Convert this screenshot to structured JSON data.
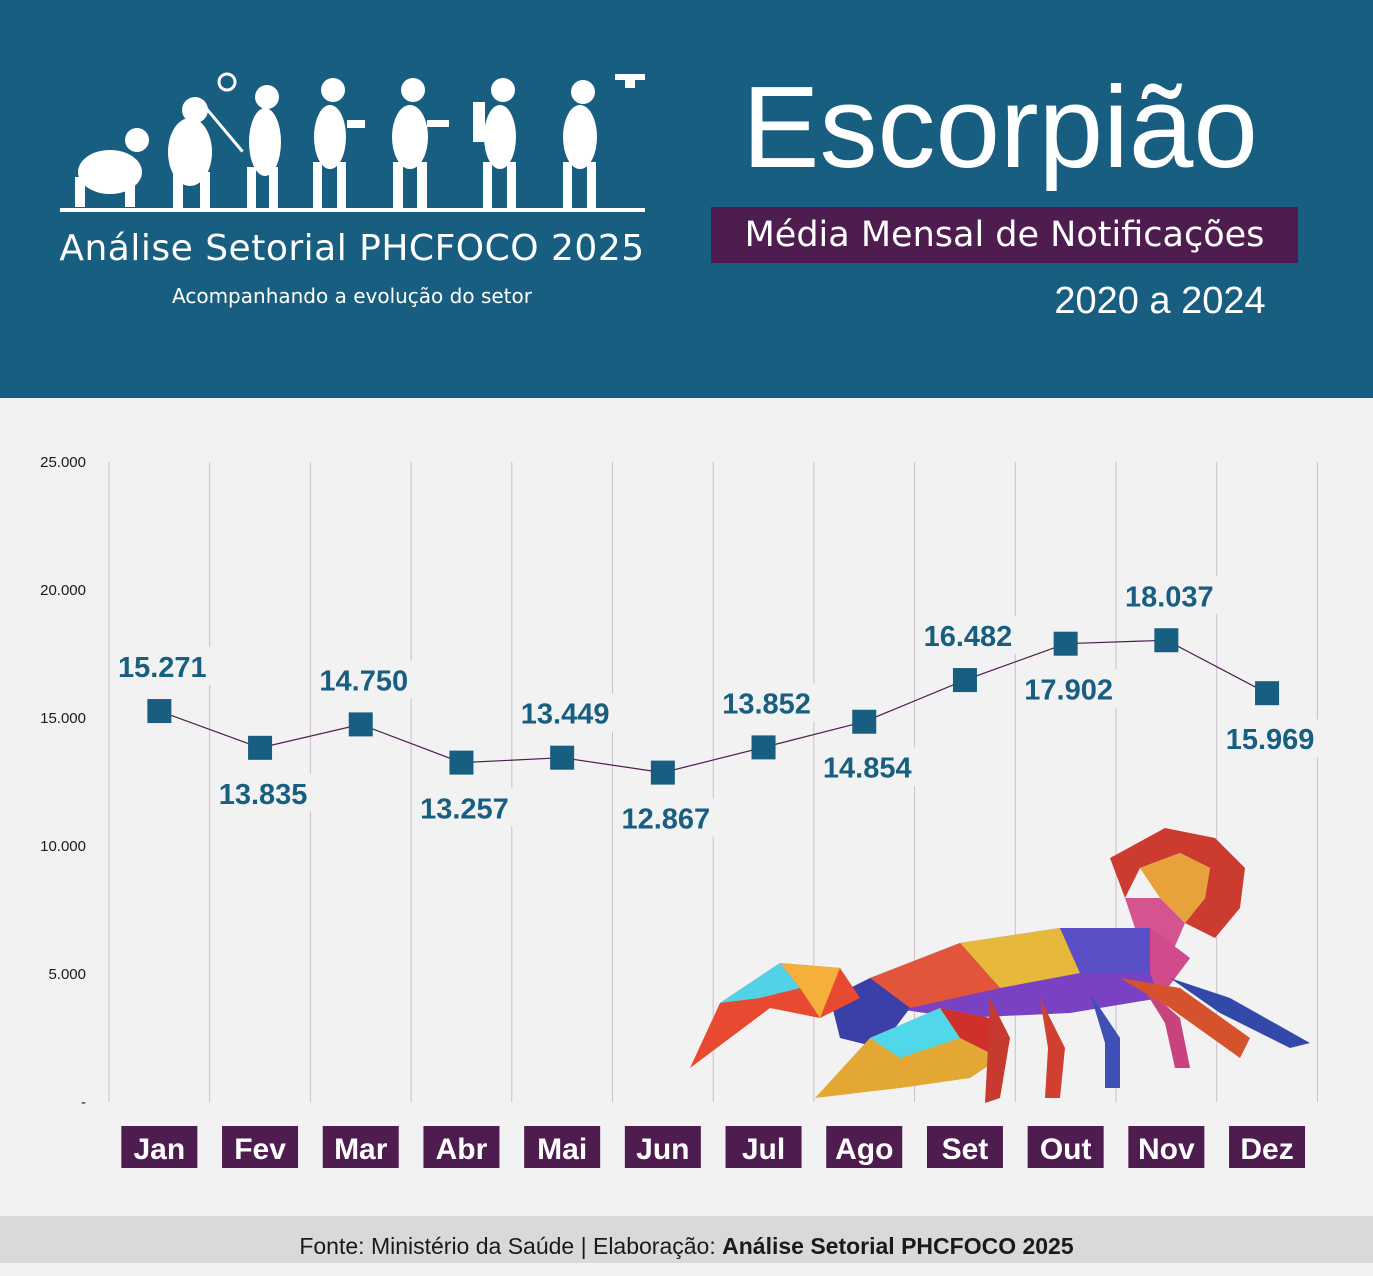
{
  "brand": {
    "title": "Análise Setorial PHCFOCO 2025",
    "subtitle": "Acompanhando a evolução do setor"
  },
  "header": {
    "title": "Escorpião",
    "subtitle": "Média Mensal de Notificações",
    "period": "2020 a 2024"
  },
  "footer": {
    "source": "Fonte: Ministério da Saúde | Elaboração: ",
    "author": "Análise Setorial PHCFOCO 2025"
  },
  "colors": {
    "header_bg": "#175e80",
    "accent_purple": "#4f1c4f",
    "marker": "#175e80",
    "line": "#4f1c4f"
  },
  "chart_data": {
    "type": "line",
    "categories": [
      "Jan",
      "Fev",
      "Mar",
      "Abr",
      "Mai",
      "Jun",
      "Jul",
      "Ago",
      "Set",
      "Out",
      "Nov",
      "Dez"
    ],
    "values": [
      15271,
      13835,
      14750,
      13257,
      13449,
      12867,
      13852,
      14854,
      16482,
      17902,
      18037,
      15969
    ],
    "data_labels": [
      "15.271",
      "13.835",
      "14.750",
      "13.257",
      "13.449",
      "12.867",
      "13.852",
      "14.854",
      "16.482",
      "17.902",
      "18.037",
      "15.969"
    ],
    "label_position": [
      "above",
      "below",
      "above",
      "below",
      "above",
      "below",
      "above",
      "below",
      "above",
      "below",
      "above",
      "below"
    ],
    "y_tick_values": [
      0,
      5000,
      10000,
      15000,
      20000,
      25000
    ],
    "y_tick_labels": [
      "-",
      "5.000",
      "10.000",
      "15.000",
      "20.000",
      "25.000"
    ],
    "ylim": [
      0,
      25000
    ],
    "grid": "vertical",
    "marker": "square"
  }
}
